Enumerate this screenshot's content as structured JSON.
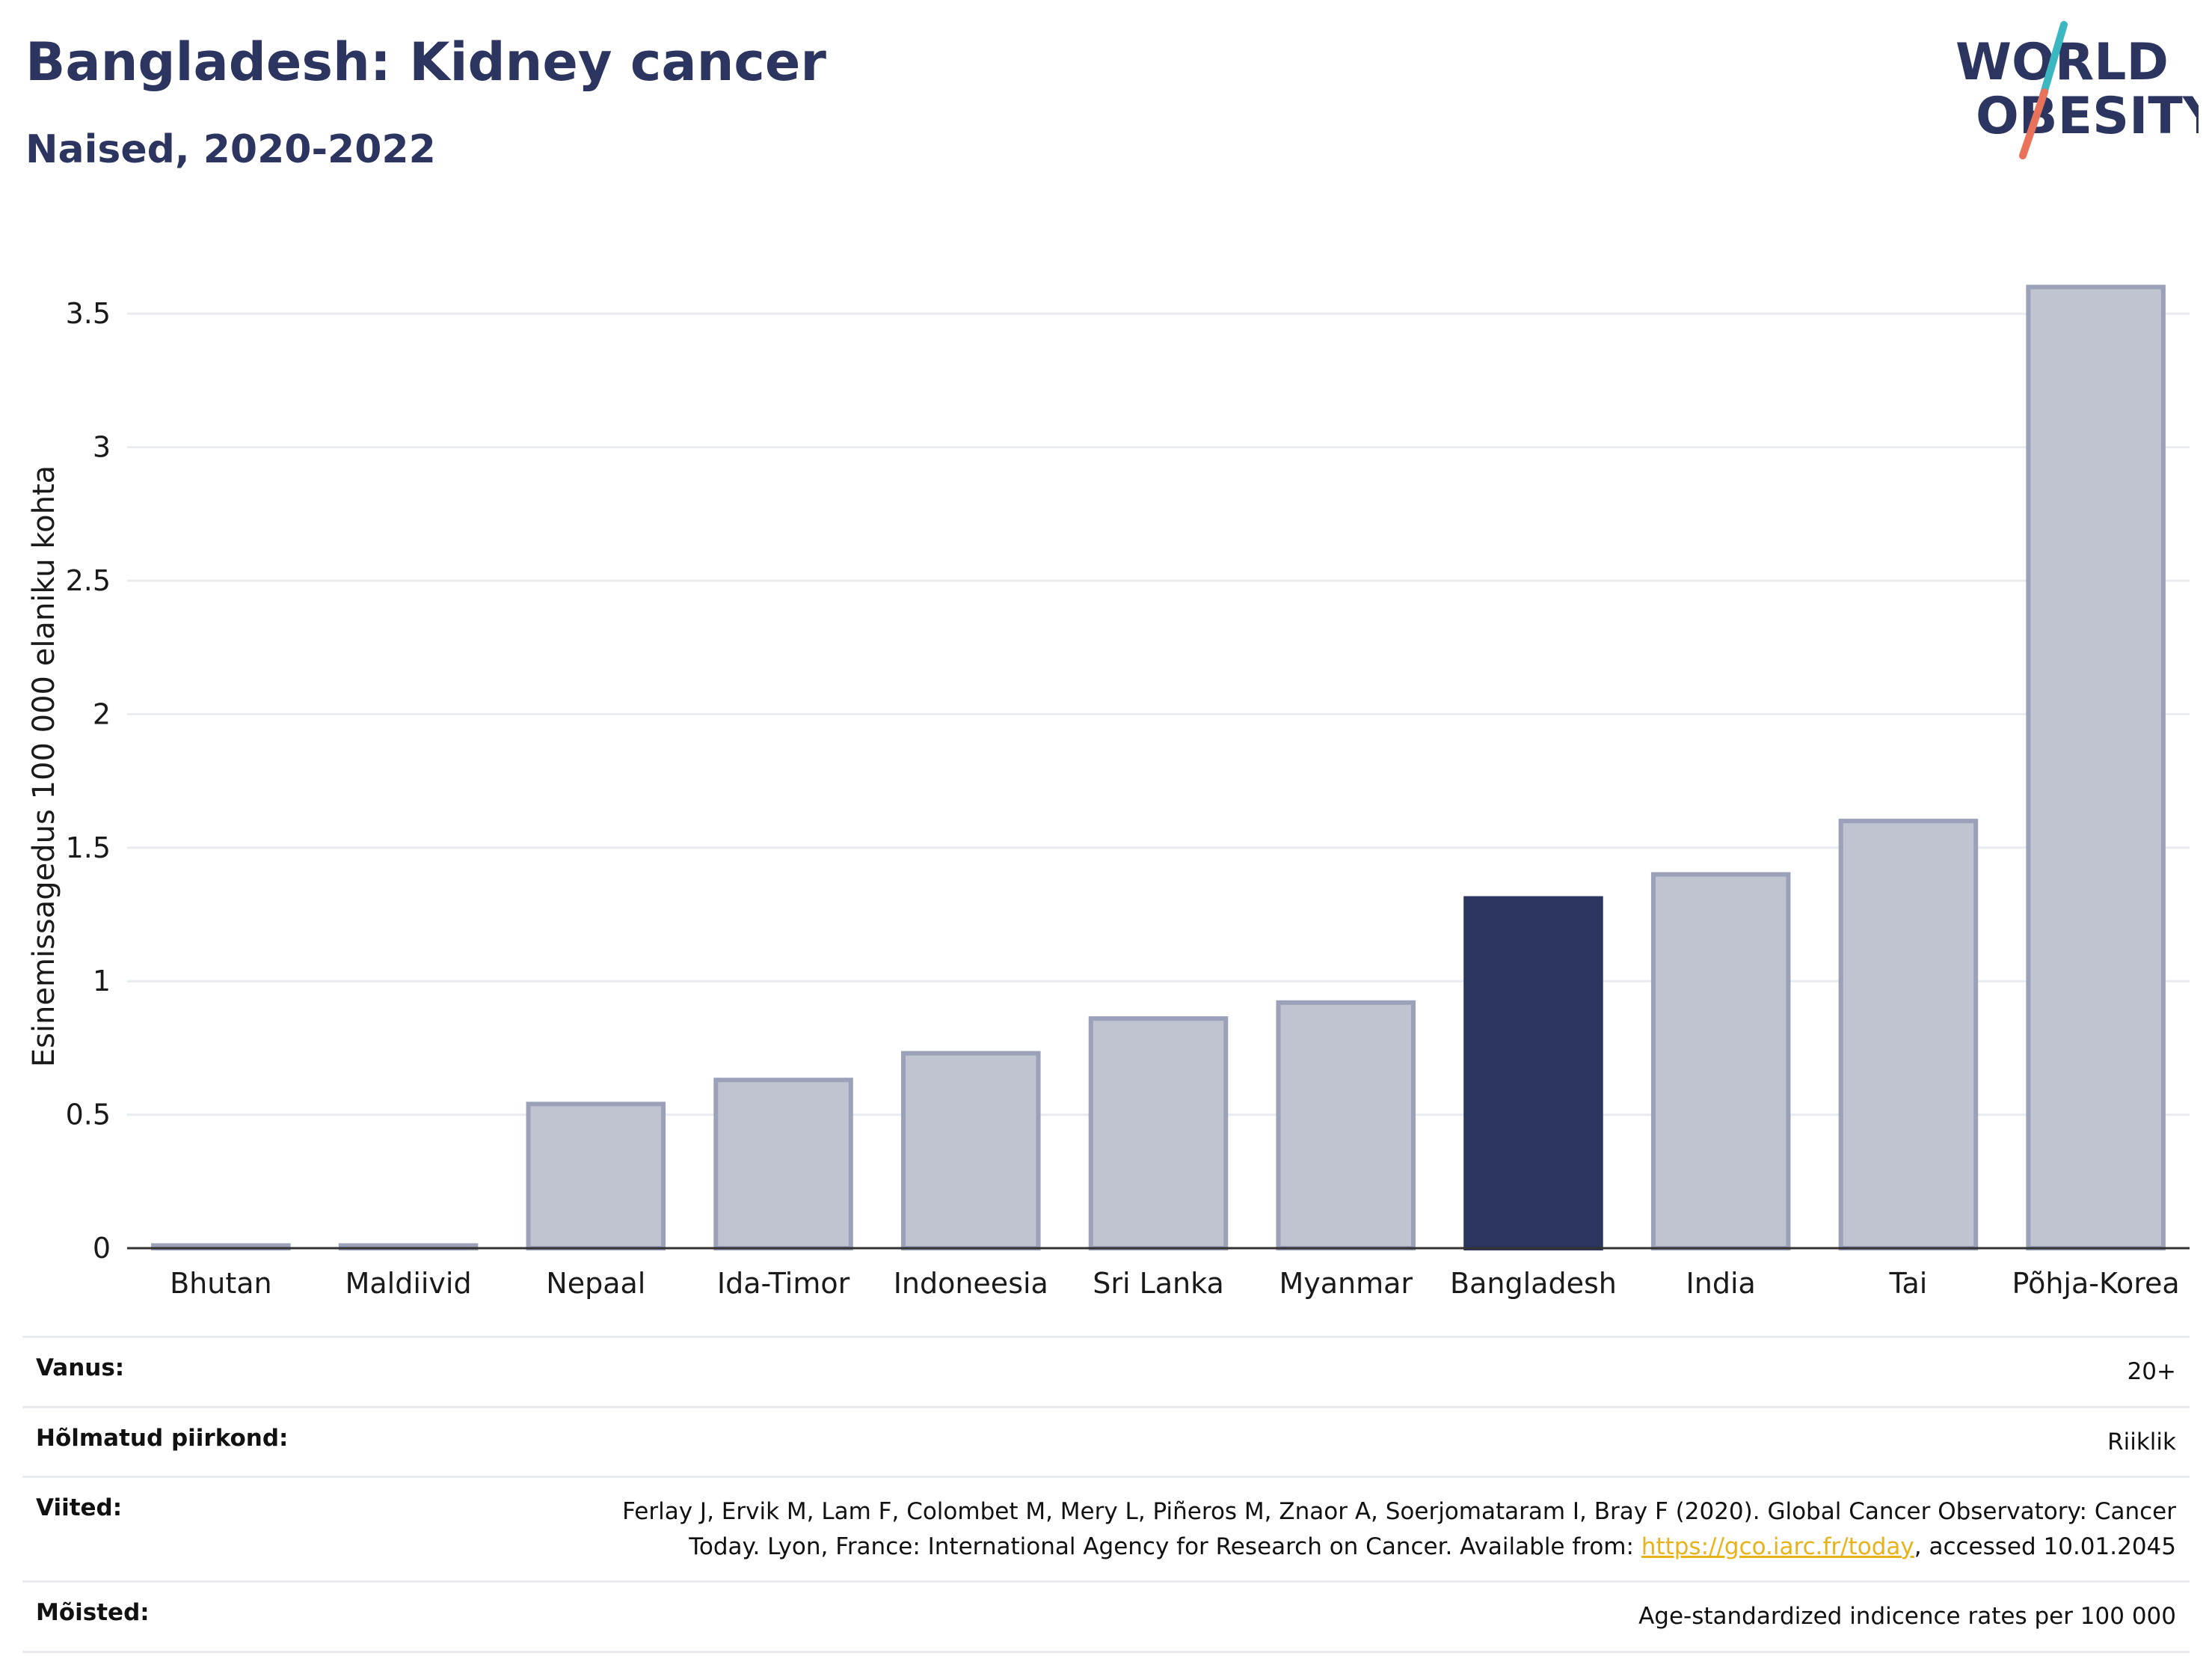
{
  "title": "Bangladesh: Kidney cancer",
  "subtitle": "Naised, 2020-2022",
  "logo": {
    "line1": "WORLD",
    "line2": "OBESITY",
    "text_color": "#2b3560",
    "slash_colors": [
      "#3ab7c0",
      "#e8735a"
    ]
  },
  "chart_data": {
    "type": "bar",
    "categories": [
      "Bhutan",
      "Maldiivid",
      "Nepaal",
      "Ida-Timor",
      "Indoneesia",
      "Sri Lanka",
      "Myanmar",
      "Bangladesh",
      "India",
      "Tai",
      "Põhja-Korea"
    ],
    "values": [
      0.01,
      0.01,
      0.54,
      0.63,
      0.73,
      0.86,
      0.92,
      1.31,
      1.4,
      1.6,
      3.6
    ],
    "highlight": "Bangladesh",
    "ylabel": "Esinemissagedus 100 000 elaniku kohta",
    "yticks": [
      0,
      0.5,
      1,
      1.5,
      2,
      2.5,
      3,
      3.5
    ],
    "ytick_labels": [
      "0",
      "0.5",
      "1",
      "1.5",
      "2",
      "2.5",
      "3",
      "3.5"
    ],
    "ylim": [
      0,
      3.75
    ],
    "grid": true,
    "colors": {
      "bar": "#c0c4d1",
      "bar_edge": "#9aa1b8",
      "highlight": "#2b3560",
      "grid": "#e8ecf0"
    }
  },
  "meta": [
    {
      "label": "Vanus:",
      "value": "20+"
    },
    {
      "label": "Hõlmatud piirkond:",
      "value": "Riiklik"
    },
    {
      "label": "Viited:",
      "value_line1": "Ferlay J, Ervik M, Lam F, Colombet M, Mery L, Piñeros M, Znaor A, Soerjomataram I, Bray F (2020). Global Cancer Observatory: Cancer",
      "value_pre": "Today. Lyon, France: International Agency for Research on Cancer. Available from: ",
      "link": "https://gco.iarc.fr/today",
      "value_post": ", accessed 10.01.2045"
    },
    {
      "label": "Mõisted:",
      "value": "Age-standardized indicence rates per 100 000"
    }
  ]
}
